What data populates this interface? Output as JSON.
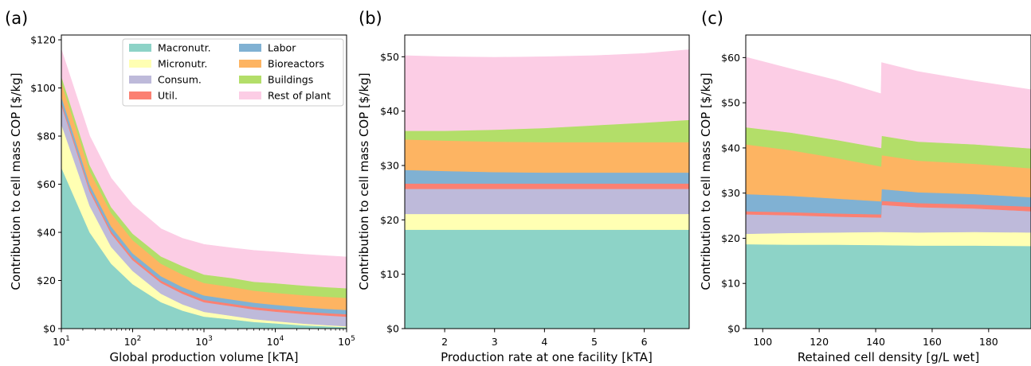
{
  "panels": [
    {
      "label": "(a)",
      "ylabel": "Contribution to cell mass COP [$/kg]",
      "xlabel": "Global production volume [kTA]"
    },
    {
      "label": "(b)",
      "ylabel": "Contribution to cell mass COP [$/kg]",
      "xlabel": "Production rate at one facility [kTA]"
    },
    {
      "label": "(c)",
      "ylabel": "Contribution to cell mass COP [$/kg]",
      "xlabel": "Retained cell density [g/L wet]"
    }
  ],
  "legend": {
    "placement": "top-right of panel (a)"
  },
  "colors": {
    "Macronutr.": "#8dd3c7",
    "Micronutr.": "#ffffb3",
    "Consum.": "#bebada",
    "Util.": "#fb8072",
    "Labor": "#80b1d3",
    "Bioreactors": "#fdb462",
    "Buildings": "#b3de69",
    "Rest of plant": "#fccde5"
  },
  "chart_data": [
    {
      "type": "area",
      "stacked": true,
      "xscale": "log",
      "xlim": [
        10,
        100000
      ],
      "ylim": [
        0,
        122
      ],
      "grid": false,
      "x_ticks": [
        {
          "value": 10,
          "base": "10",
          "exp": "1"
        },
        {
          "value": 100,
          "base": "10",
          "exp": "2"
        },
        {
          "value": 1000,
          "base": "10",
          "exp": "3"
        },
        {
          "value": 10000,
          "base": "10",
          "exp": "4"
        },
        {
          "value": 100000,
          "base": "10",
          "exp": "5"
        }
      ],
      "y_ticks": [
        "$0",
        "$20",
        "$40",
        "$60",
        "$80",
        "$100",
        "$120"
      ],
      "y_tick_values": [
        0,
        20,
        40,
        60,
        80,
        100,
        120
      ],
      "x": [
        10,
        25,
        50,
        100,
        250,
        500,
        1000,
        2500,
        5000,
        10000,
        25000,
        50000,
        100000
      ],
      "series": [
        {
          "name": "Macronutr.",
          "values": [
            67,
            40,
            27,
            18.5,
            11,
            7.5,
            5,
            3.8,
            2.8,
            2.2,
            1.4,
            1.0,
            0.6
          ]
        },
        {
          "name": "Micronutr.",
          "values": [
            18,
            11,
            7,
            5.5,
            3.5,
            2.6,
            2.0,
            1.5,
            1.2,
            0.9,
            0.7,
            0.5,
            0.4
          ]
        },
        {
          "name": "Consum.",
          "values": [
            8,
            6,
            5.5,
            4.5,
            4.5,
            4.4,
            4.0,
            4.0,
            4.0,
            4.0,
            4.0,
            4.0,
            4.0
          ]
        },
        {
          "name": "Util.",
          "values": [
            1.0,
            1.0,
            1.0,
            1.0,
            1.0,
            1.0,
            1.0,
            1.0,
            1.0,
            1.0,
            1.0,
            1.0,
            1.0
          ]
        },
        {
          "name": "Labor",
          "values": [
            2.5,
            2.0,
            2.0,
            1.8,
            1.8,
            1.8,
            1.8,
            1.8,
            1.8,
            1.8,
            1.8,
            1.8,
            1.8
          ]
        },
        {
          "name": "Bioreactors",
          "values": [
            6,
            5.5,
            5.5,
            5.5,
            5.2,
            5.2,
            5.2,
            5.2,
            5.0,
            5.0,
            5.0,
            5.0,
            5.0
          ]
        },
        {
          "name": "Buildings",
          "values": [
            2.5,
            2.5,
            2.5,
            2.7,
            3.0,
            3.5,
            3.5,
            3.7,
            3.7,
            4.0,
            4.0,
            4.0,
            4.0
          ]
        },
        {
          "name": "Rest of plant",
          "values": [
            11,
            12,
            12,
            12,
            11.5,
            11.5,
            12.5,
            12.5,
            13,
            13,
            13,
            13,
            13
          ]
        }
      ]
    },
    {
      "type": "area",
      "stacked": true,
      "xscale": "linear",
      "xlim": [
        1.2,
        6.9
      ],
      "ylim": [
        0,
        54
      ],
      "grid": false,
      "x_ticks": [
        "2",
        "3",
        "4",
        "5",
        "6"
      ],
      "x_tick_values": [
        2,
        3,
        4,
        5,
        6
      ],
      "y_ticks": [
        "$0",
        "$10",
        "$20",
        "$30",
        "$40",
        "$50"
      ],
      "y_tick_values": [
        0,
        10,
        20,
        30,
        40,
        50
      ],
      "x": [
        1.2,
        2,
        3,
        4,
        5,
        6,
        6.9
      ],
      "series": [
        {
          "name": "Macronutr.",
          "values": [
            18.2,
            18.2,
            18.2,
            18.2,
            18.2,
            18.2,
            18.2
          ]
        },
        {
          "name": "Micronutr.",
          "values": [
            2.9,
            2.9,
            2.9,
            2.9,
            2.9,
            2.9,
            2.9
          ]
        },
        {
          "name": "Consum.",
          "values": [
            4.6,
            4.6,
            4.6,
            4.6,
            4.6,
            4.6,
            4.6
          ]
        },
        {
          "name": "Util.",
          "values": [
            1.0,
            1.0,
            1.0,
            1.0,
            1.0,
            1.0,
            1.0
          ]
        },
        {
          "name": "Labor",
          "values": [
            2.5,
            2.3,
            2.1,
            2.0,
            2.0,
            2.0,
            2.0
          ]
        },
        {
          "name": "Bioreactors",
          "values": [
            5.6,
            5.6,
            5.6,
            5.6,
            5.6,
            5.6,
            5.6
          ]
        },
        {
          "name": "Buildings",
          "values": [
            1.6,
            1.8,
            2.2,
            2.6,
            3.1,
            3.6,
            4.1
          ]
        },
        {
          "name": "Rest of plant",
          "values": [
            13.8,
            13.6,
            13.3,
            13.1,
            12.8,
            12.7,
            12.9
          ]
        }
      ]
    },
    {
      "type": "area",
      "stacked": true,
      "xscale": "linear",
      "xlim": [
        94,
        195
      ],
      "ylim": [
        0,
        65
      ],
      "grid": false,
      "x_ticks": [
        "100",
        "120",
        "140",
        "160",
        "180"
      ],
      "x_tick_values": [
        100,
        120,
        140,
        160,
        180
      ],
      "y_ticks": [
        "$0",
        "$10",
        "$20",
        "$30",
        "$40",
        "$50",
        "$60"
      ],
      "y_tick_values": [
        0,
        10,
        20,
        30,
        40,
        50,
        60
      ],
      "x": [
        94,
        110,
        126,
        141.9,
        142.1,
        155,
        175,
        195
      ],
      "series": [
        {
          "name": "Macronutr.",
          "values": [
            18.7,
            18.6,
            18.6,
            18.5,
            18.5,
            18.4,
            18.4,
            18.3
          ]
        },
        {
          "name": "Micronutr.",
          "values": [
            2.3,
            2.6,
            2.7,
            2.9,
            2.9,
            2.9,
            3.0,
            3.0
          ]
        },
        {
          "name": "Consum.",
          "values": [
            4.3,
            3.9,
            3.5,
            3.2,
            6.0,
            5.6,
            5.2,
            4.7
          ]
        },
        {
          "name": "Util.",
          "values": [
            0.7,
            0.7,
            0.7,
            0.7,
            0.9,
            0.9,
            0.9,
            1.0
          ]
        },
        {
          "name": "Labor",
          "values": [
            3.8,
            3.6,
            3.3,
            2.9,
            2.6,
            2.4,
            2.3,
            2.1
          ]
        },
        {
          "name": "Bioreactors",
          "values": [
            11.0,
            10.1,
            9.0,
            7.7,
            7.5,
            7.0,
            6.7,
            6.4
          ]
        },
        {
          "name": "Buildings",
          "values": [
            3.8,
            3.9,
            4.0,
            4.1,
            4.3,
            4.2,
            4.3,
            4.4
          ]
        },
        {
          "name": "Rest of plant",
          "values": [
            15.5,
            14.1,
            13.2,
            12.0,
            16.2,
            15.5,
            14.0,
            13.0
          ]
        }
      ]
    }
  ]
}
